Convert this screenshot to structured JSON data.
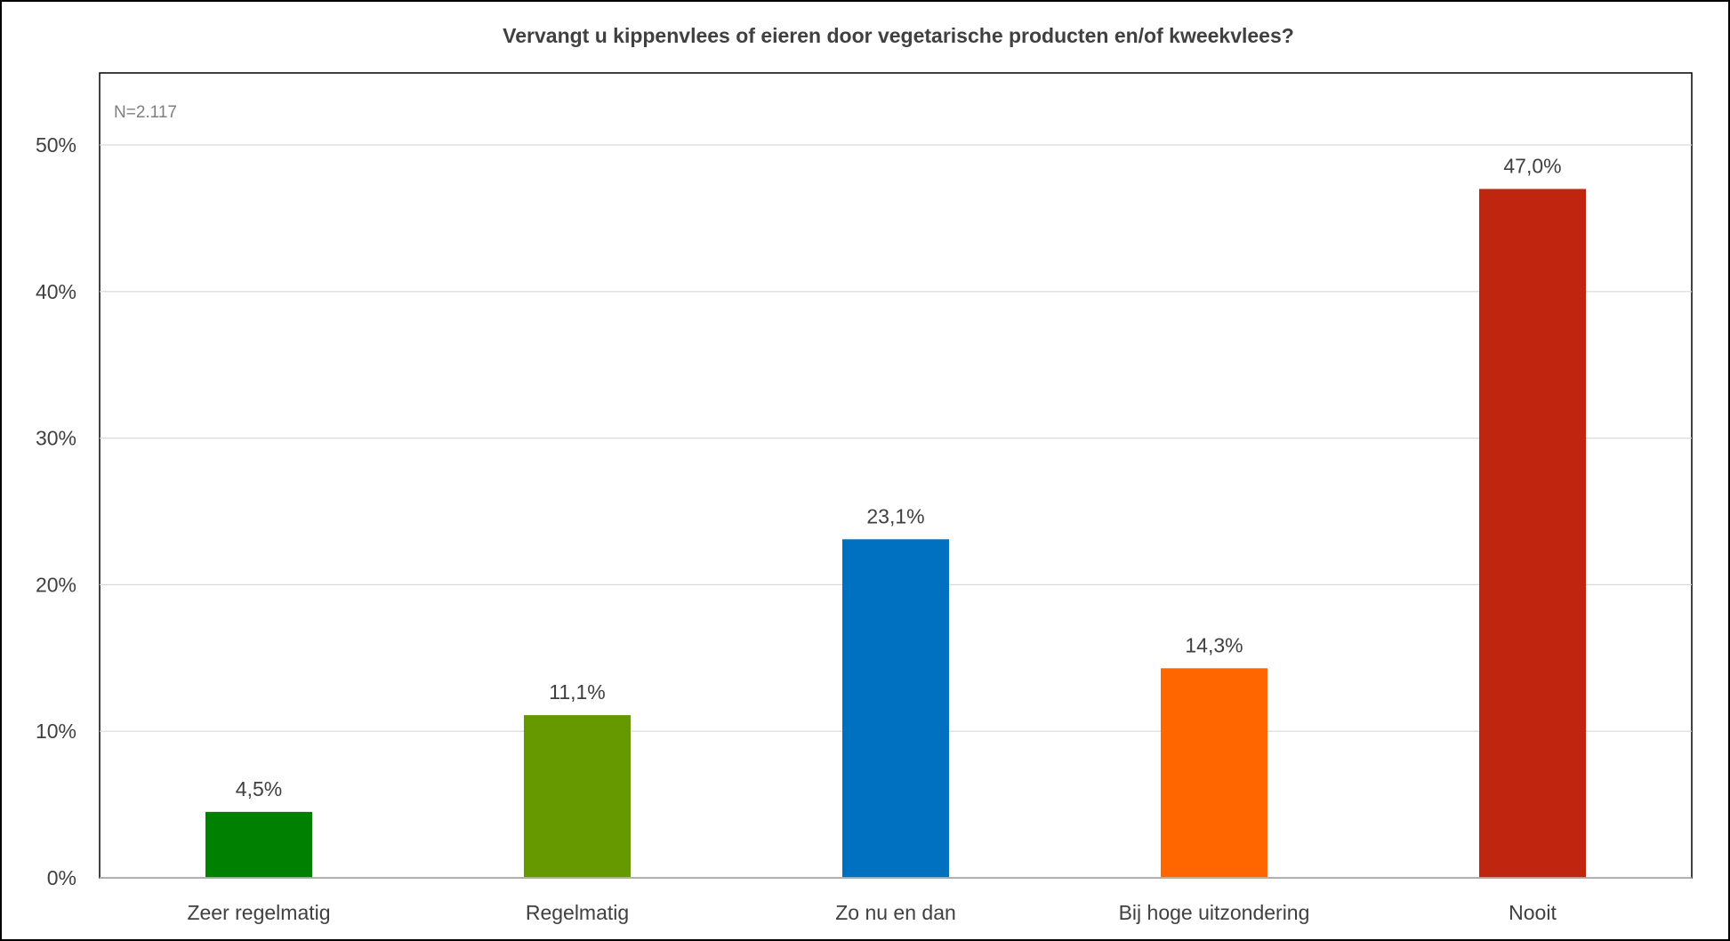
{
  "chart_data": {
    "type": "bar",
    "title": "Vervangt u kippenvlees of eieren door vegetarische producten en/of kweekvlees?",
    "annotation": "N=2.117",
    "categories": [
      "Zeer regelmatig",
      "Regelmatig",
      "Zo nu en dan",
      "Bij hoge uitzondering",
      "Nooit"
    ],
    "values": [
      4.5,
      11.1,
      23.1,
      14.3,
      47.0
    ],
    "data_labels": [
      "4,5%",
      "11,1%",
      "23,1%",
      "14,3%",
      "47,0%"
    ],
    "colors": [
      "#008000",
      "#669900",
      "#0070C0",
      "#FF6600",
      "#C0260F"
    ],
    "ylim": [
      0,
      50
    ],
    "yticks": [
      0,
      10,
      20,
      30,
      40,
      50
    ],
    "ytick_labels": [
      "0%",
      "10%",
      "20%",
      "30%",
      "40%",
      "50%"
    ],
    "xlabel": "",
    "ylabel": "",
    "grid": true,
    "legend": "none"
  }
}
